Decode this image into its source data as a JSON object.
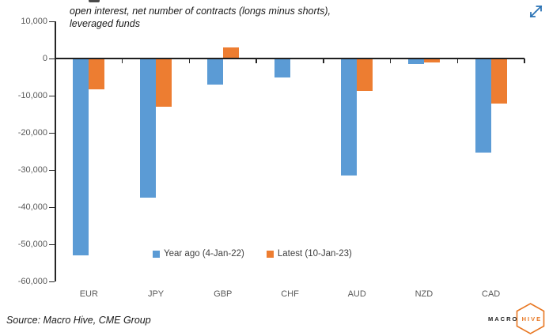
{
  "chart_data": {
    "type": "bar",
    "title_lines": [
      "open interest, net number of contracts (longs minus shorts),",
      "leveraged funds"
    ],
    "categories": [
      "EUR",
      "JPY",
      "GBP",
      "CHF",
      "AUD",
      "NZD",
      "CAD"
    ],
    "series": [
      {
        "name": "Year ago (4-Jan-22)",
        "color": "#5B9BD5",
        "values": [
          -53000,
          -37500,
          -7000,
          -5000,
          -31500,
          -1500,
          -25400
        ]
      },
      {
        "name": "Latest (10-Jan-23)",
        "color": "#ED7D31",
        "values": [
          -8300,
          -13000,
          3000,
          0,
          -8700,
          -1000,
          -12200
        ]
      }
    ],
    "ylim": [
      -60000,
      10000
    ],
    "ytick_step": 10000,
    "ytick_labels": [
      "10,000",
      "0",
      "-10,000",
      "-20,000",
      "-30,000",
      "-40,000",
      "-50,000",
      "-60,000"
    ],
    "grid": false,
    "legend_position": "bottom-inside",
    "xlabel": "",
    "ylabel": ""
  },
  "source": "Source: Macro Hive, CME Group",
  "logo": {
    "macro": "MACRO",
    "hive": "HIVE",
    "accent_color": "#E87722"
  },
  "expand_icon": {
    "color": "#2E75B6"
  }
}
